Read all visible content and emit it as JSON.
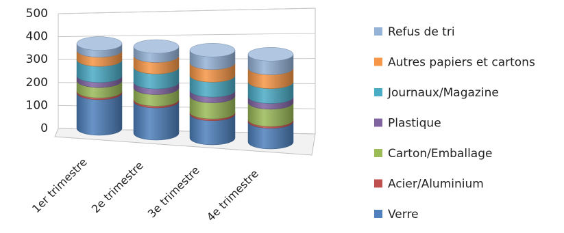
{
  "chart_data": {
    "type": "bar",
    "subtype": "stacked-3d-cylinder",
    "title": "",
    "xlabel": "",
    "ylabel": "",
    "ylim": [
      0,
      500
    ],
    "yticks": [
      "500",
      "400",
      "300",
      "200",
      "100",
      "0"
    ],
    "grid": true,
    "legend_position": "right",
    "categories": [
      "1er trimestre",
      "2e trimestre",
      "3e trimestre",
      "4e trimestre"
    ],
    "series": [
      {
        "name": "Verre",
        "color": "#4f81bd",
        "values": [
          155,
          140,
          105,
          90
        ]
      },
      {
        "name": "Acier/Aluminium",
        "color": "#c0504d",
        "values": [
          8,
          8,
          8,
          8
        ]
      },
      {
        "name": "Carton/Emballage",
        "color": "#9bbb59",
        "values": [
          45,
          50,
          70,
          75
        ]
      },
      {
        "name": "Plastique",
        "color": "#8064a2",
        "values": [
          22,
          25,
          25,
          25
        ]
      },
      {
        "name": "Journaux/Magazine",
        "color": "#4bacc6",
        "values": [
          70,
          65,
          65,
          65
        ]
      },
      {
        "name": "Autres papiers et cartons",
        "color": "#f79646",
        "values": [
          40,
          50,
          55,
          60
        ]
      },
      {
        "name": "Refus de tri",
        "color": "#95b3d7",
        "values": [
          30,
          40,
          55,
          60
        ]
      }
    ]
  }
}
